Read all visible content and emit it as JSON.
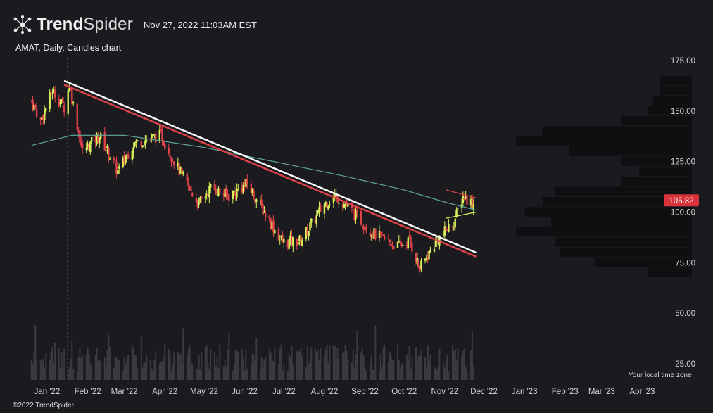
{
  "header": {
    "brand_bold": "Trend",
    "brand_regular": "Spider",
    "timestamp": "Nov 27, 2022 11:03AM EST"
  },
  "footer": {
    "copyright": "©2022 TrendSpider",
    "timezone_note": "Your local time zone"
  },
  "colors": {
    "background": "#1b1b1f",
    "up_candle": "#d9f25a",
    "down_candle": "#e0424a",
    "sma_line": "#5fa89b",
    "trendline_white": "#ffffff",
    "trendline_red": "#e0424a",
    "price_badge": "#d8323b",
    "volume_bar": "#3a3a3f",
    "volume_profile": "#0f0f12"
  },
  "chart_data": {
    "type": "candlestick",
    "title": "AMAT, Daily, Candles chart",
    "symbol": "AMAT",
    "interval": "Daily",
    "last_price": "105.82",
    "y_ticks": [
      "175.00",
      "150.00",
      "125.00",
      "100.00",
      "75.00",
      "50.00",
      "25.00"
    ],
    "x_ticks": [
      "Jan '22",
      "Feb '22",
      "Mar '22",
      "Apr '22",
      "May '22",
      "Jun '22",
      "Jul '22",
      "Aug '22",
      "Sep '22",
      "Oct '22",
      "Nov '22",
      "Dec '22",
      "Jan '23",
      "Feb '23",
      "Mar '23",
      "Apr '23"
    ],
    "ylim": [
      20,
      182
    ],
    "close_path": {
      "dates": [
        "2021-12-20",
        "2021-12-27",
        "2022-01-05",
        "2022-01-14",
        "2022-01-18",
        "2022-01-28",
        "2022-02-10",
        "2022-02-24",
        "2022-03-08",
        "2022-03-29",
        "2022-04-14",
        "2022-04-27",
        "2022-05-06",
        "2022-05-20",
        "2022-06-03",
        "2022-06-16",
        "2022-06-30",
        "2022-07-14",
        "2022-08-01",
        "2022-08-10",
        "2022-08-24",
        "2022-09-06",
        "2022-09-26",
        "2022-10-05",
        "2022-10-13",
        "2022-10-26",
        "2022-11-08",
        "2022-11-15",
        "2022-11-23"
      ],
      "closes": [
        155,
        145,
        160,
        152,
        163,
        130,
        138,
        120,
        134,
        138,
        118,
        104,
        112,
        108,
        114,
        100,
        85,
        86,
        104,
        108,
        99,
        90,
        83,
        86,
        72,
        86,
        95,
        108,
        104
      ]
    },
    "sma_200": {
      "dates": [
        "2021-12-20",
        "2022-01-20",
        "2022-03-01",
        "2022-05-01",
        "2022-07-01",
        "2022-08-15",
        "2022-10-01",
        "2022-11-01",
        "2022-11-25"
      ],
      "values": [
        133,
        138,
        138,
        132,
        124,
        118,
        111,
        105,
        101
      ]
    },
    "trendlines": [
      {
        "color": "white",
        "start": [
          "2022-01-14",
          165
        ],
        "end": [
          "2022-11-25",
          80
        ]
      },
      {
        "color": "red",
        "start": [
          "2022-01-14",
          163
        ],
        "end": [
          "2022-11-25",
          78
        ]
      },
      {
        "color": "red",
        "start": [
          "2022-11-02",
          111
        ],
        "end": [
          "2022-11-25",
          107
        ]
      },
      {
        "color": "green",
        "start": [
          "2022-11-02",
          97
        ],
        "end": [
          "2022-11-25",
          100
        ]
      }
    ],
    "volume_profile_levels": [
      165,
      160,
      155,
      150,
      145,
      140,
      135,
      130,
      125,
      120,
      115,
      110,
      105,
      100,
      95,
      90,
      85,
      80,
      75,
      70
    ],
    "volume_profile_widths": [
      0.18,
      0.18,
      0.22,
      0.25,
      0.4,
      0.85,
      1.0,
      0.7,
      0.4,
      0.3,
      0.4,
      0.78,
      0.85,
      0.95,
      0.8,
      1.0,
      0.78,
      0.75,
      0.55,
      0.25
    ],
    "grid": false,
    "legend": "none"
  }
}
